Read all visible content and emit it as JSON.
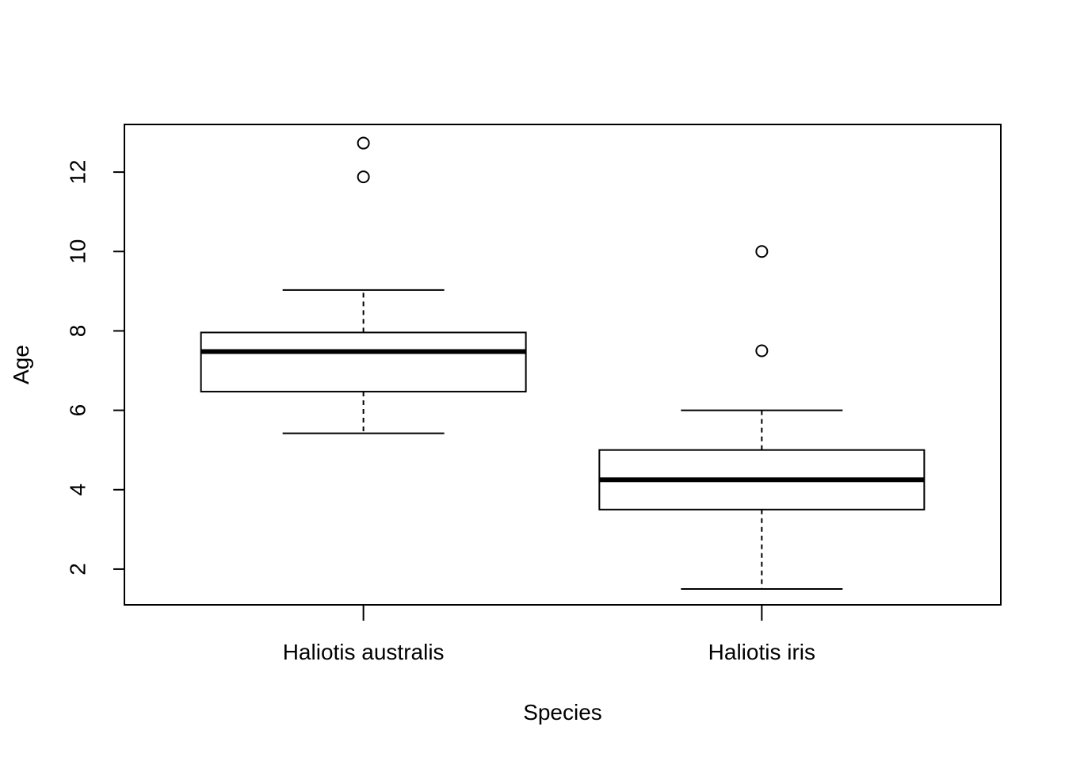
{
  "chart_data": {
    "type": "box",
    "title": "",
    "xlabel": "Species",
    "ylabel": "Age",
    "ylim": [
      1.1,
      13.2
    ],
    "yticks": [
      2,
      4,
      6,
      8,
      10,
      12
    ],
    "ytick_labels": [
      "2",
      "4",
      "6",
      "8",
      "10",
      "12"
    ],
    "grid": false,
    "legend": "none",
    "categories": [
      "Haliotis australis",
      "Haliotis iris"
    ],
    "series": [
      {
        "category": "Haliotis australis",
        "whisker_low": 5.42,
        "q1": 6.47,
        "median": 7.48,
        "q3": 7.96,
        "whisker_high": 9.03,
        "outliers": [
          11.88,
          12.73
        ]
      },
      {
        "category": "Haliotis iris",
        "whisker_low": 1.5,
        "q1": 3.5,
        "median": 4.25,
        "q3": 5.0,
        "whisker_high": 6.0,
        "outliers": [
          7.5,
          10.0
        ]
      }
    ],
    "colors": {
      "stroke": "#000000",
      "background": "#ffffff"
    }
  }
}
